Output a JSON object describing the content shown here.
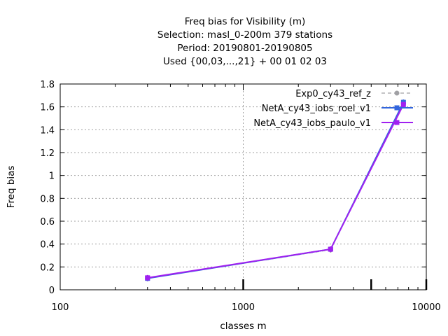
{
  "chart_data": {
    "type": "line",
    "title_lines": [
      "Freq bias  for Visibility (m)",
      "Selection: masl_0-200m    379 stations",
      "Period: 20190801-20190805",
      "Used {00,03,...,21} + 00 01 02 03"
    ],
    "xlabel": "classes m",
    "ylabel": "Freq bias",
    "x_scale": "log",
    "xlim": [
      100,
      10000
    ],
    "ylim": [
      0,
      1.8
    ],
    "x_ticks": [
      100,
      1000,
      10000
    ],
    "x_tick_labels": [
      "100",
      "1000",
      "10000"
    ],
    "y_ticks": [
      0,
      0.2,
      0.4,
      0.6,
      0.8,
      1,
      1.2,
      1.4,
      1.6,
      1.8
    ],
    "y_tick_labels": [
      "0",
      "0.2",
      "0.4",
      "0.6",
      "0.8",
      "1",
      "1.2",
      "1.4",
      "1.6",
      "1.8"
    ],
    "grid": true,
    "legend_position": "top-right",
    "series": [
      {
        "name": "Exp0_cy43_ref_z",
        "color": "#a0a0a4",
        "style": "dashed",
        "x": [
          300,
          3000,
          7500
        ],
        "y": [
          0.1,
          0.35,
          1.63
        ]
      },
      {
        "name": "NetA_cy43_iobs_roel_v1",
        "color": "#3366dd",
        "style": "solid",
        "x": [
          300,
          3000,
          7500
        ],
        "y": [
          0.1,
          0.355,
          1.64
        ]
      },
      {
        "name": "NetA_cy43_iobs_paulo_v1",
        "color": "#a020f0",
        "style": "solid",
        "x": [
          300,
          3000,
          7500
        ],
        "y": [
          0.105,
          0.355,
          1.62
        ]
      }
    ],
    "baseline_markers_x": [
      1000,
      5000,
      10000
    ]
  }
}
